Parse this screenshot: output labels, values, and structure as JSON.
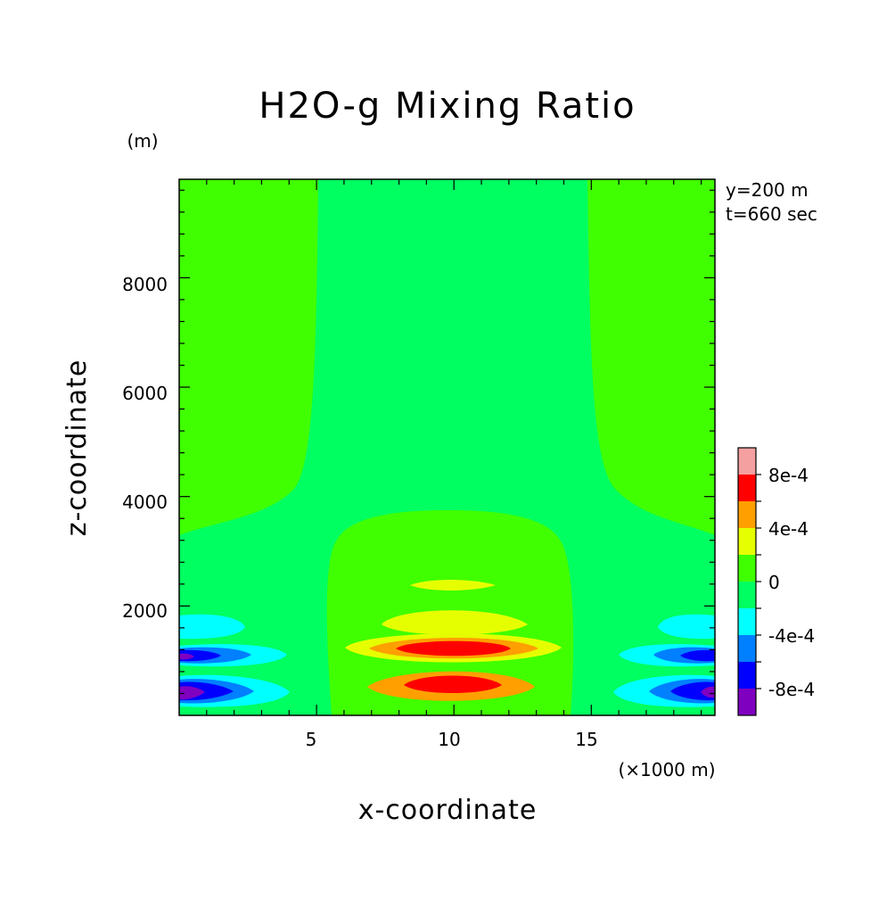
{
  "chart_data": {
    "type": "heatmap",
    "title": "H2O-g Mixing Ratio",
    "xlabel": "x-coordinate",
    "ylabel": "z-coordinate",
    "x_unit": "(×1000 m)",
    "y_unit": "(m)",
    "xlim": [
      0,
      19.5
    ],
    "ylim": [
      0,
      9800
    ],
    "x_ticks": [
      "5",
      "10",
      "15"
    ],
    "y_ticks": [
      "2000",
      "4000",
      "6000",
      "8000"
    ],
    "annotations": [
      "y=200 m",
      "t=660 sec"
    ],
    "colorbar": {
      "tick_labels": [
        "8e-4",
        "4e-4",
        "0",
        "-4e-4",
        "-8e-4"
      ],
      "levels": [
        {
          "range": [
            0.0008,
            0.001
          ],
          "color": "#f4a0a0"
        },
        {
          "range": [
            0.0006,
            0.0008
          ],
          "color": "#ff0000"
        },
        {
          "range": [
            0.0004,
            0.0006
          ],
          "color": "#ffa000"
        },
        {
          "range": [
            0.0002,
            0.0004
          ],
          "color": "#e6ff00"
        },
        {
          "range": [
            0,
            0.0002
          ],
          "color": "#40ff00"
        },
        {
          "range": [
            -0.0002,
            0
          ],
          "color": "#00ff60"
        },
        {
          "range": [
            -0.0004,
            -0.0002
          ],
          "color": "#00ffff"
        },
        {
          "range": [
            -0.0006,
            -0.0004
          ],
          "color": "#0080ff"
        },
        {
          "range": [
            -0.0008,
            -0.0006
          ],
          "color": "#0000ff"
        },
        {
          "range": [
            -0.001,
            -0.0008
          ],
          "color": "#8000c0"
        }
      ]
    },
    "regions": [
      {
        "name": "upper-left-positive",
        "color": "#40ff00"
      },
      {
        "name": "upper-right-positive",
        "color": "#40ff00"
      },
      {
        "name": "lower-core-positive",
        "color": "#40ff00"
      },
      {
        "name": "core-band-yellow-1",
        "color": "#e6ff00"
      },
      {
        "name": "core-band-yellow-2",
        "color": "#e6ff00"
      },
      {
        "name": "core-band-yellow-3",
        "color": "#e6ff00"
      },
      {
        "name": "core-band-orange-1",
        "color": "#ffa000"
      },
      {
        "name": "core-band-orange-2",
        "color": "#ffa000"
      },
      {
        "name": "core-band-red-1",
        "color": "#ff0000"
      },
      {
        "name": "core-band-red-2",
        "color": "#ff0000"
      },
      {
        "name": "left-cyan",
        "color": "#00ffff"
      },
      {
        "name": "left-blue-light",
        "color": "#0080ff"
      },
      {
        "name": "left-blue",
        "color": "#0000ff"
      },
      {
        "name": "left-purple",
        "color": "#8000c0"
      },
      {
        "name": "right-cyan",
        "color": "#00ffff"
      },
      {
        "name": "right-blue-light",
        "color": "#0080ff"
      },
      {
        "name": "right-blue",
        "color": "#0000ff"
      },
      {
        "name": "right-purple",
        "color": "#8000c0"
      }
    ]
  }
}
